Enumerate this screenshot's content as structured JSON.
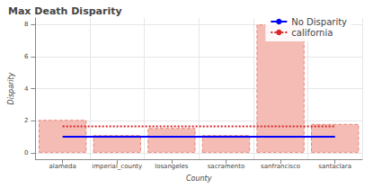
{
  "chart_data": {
    "type": "bar",
    "title": "Max Death Disparity",
    "x_label": "County",
    "y_label": "Disparity",
    "categories": [
      "alameda",
      "imperial_county",
      "losangeles",
      "sacramento",
      "sanfrancisco",
      "santaclara"
    ],
    "values": [
      2.05,
      1.1,
      1.55,
      1.1,
      8.0,
      1.8
    ],
    "color": "#f4bcb4",
    "series": [
      {
        "name": "No Disparity",
        "type": "line",
        "color": "#0000ff",
        "line_style": "solid",
        "values": [
          1,
          1,
          1,
          1,
          1,
          1
        ]
      },
      {
        "name": "california",
        "type": "line",
        "color": "#d62728",
        "line_style": "dotted",
        "values": [
          1.65,
          1.65,
          1.65,
          1.65,
          1.65,
          1.65
        ]
      }
    ],
    "ylim": [
      -0.4,
      8.4
    ],
    "yticks": [
      0,
      2,
      4,
      6,
      8
    ],
    "grid": true,
    "legend": "top-right"
  }
}
